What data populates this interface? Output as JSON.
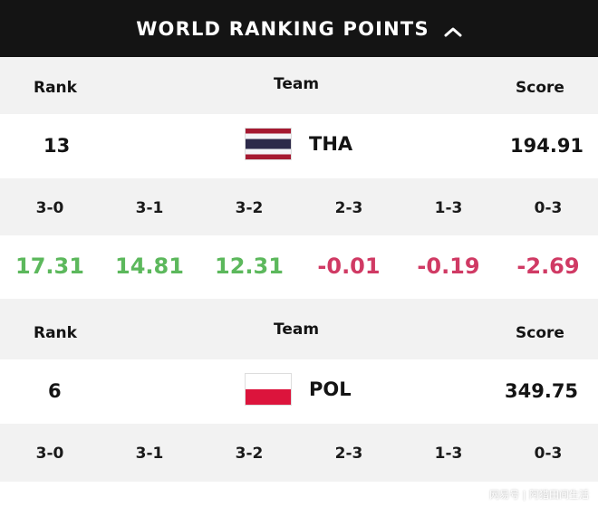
{
  "header": {
    "title": "WORLD RANKING POINTS",
    "toggle_icon": "chevron-up-icon"
  },
  "colors": {
    "positive": "#5cb85c",
    "negative": "#d03a64",
    "header_bg": "#141414"
  },
  "columns": {
    "rank": "Rank",
    "team": "Team",
    "score": "Score"
  },
  "teams": [
    {
      "rank": "13",
      "code": "THA",
      "score": "194.91",
      "flag_icon": "thailand-flag-icon",
      "results": [
        {
          "label": "3-0",
          "value": "17.31",
          "sign": "pos"
        },
        {
          "label": "3-1",
          "value": "14.81",
          "sign": "pos"
        },
        {
          "label": "3-2",
          "value": "12.31",
          "sign": "pos"
        },
        {
          "label": "2-3",
          "value": "-0.01",
          "sign": "neg"
        },
        {
          "label": "1-3",
          "value": "-0.19",
          "sign": "neg"
        },
        {
          "label": "0-3",
          "value": "-2.69",
          "sign": "neg"
        }
      ]
    },
    {
      "rank": "6",
      "code": "POL",
      "score": "349.75",
      "flag_icon": "poland-flag-icon",
      "results": [
        {
          "label": "3-0",
          "value": "",
          "sign": "pos"
        },
        {
          "label": "3-1",
          "value": "",
          "sign": "pos"
        },
        {
          "label": "3-2",
          "value": "",
          "sign": "pos"
        },
        {
          "label": "2-3",
          "value": "",
          "sign": "neg"
        },
        {
          "label": "1-3",
          "value": "",
          "sign": "neg"
        },
        {
          "label": "0-3",
          "value": "",
          "sign": "neg"
        }
      ]
    }
  ],
  "watermark": "网易号 | 阿猎田间生活"
}
